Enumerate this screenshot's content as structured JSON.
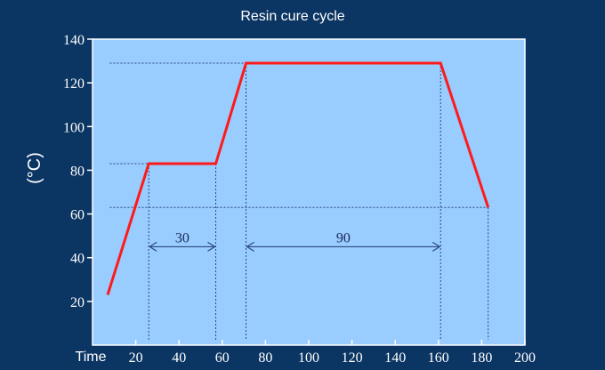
{
  "chart_data": {
    "type": "line",
    "title": "Resin cure cycle",
    "xlabel": "Time",
    "ylabel": "(°C)",
    "xlim": [
      0,
      200
    ],
    "ylim": [
      0,
      140
    ],
    "x_ticks": [
      20,
      40,
      60,
      80,
      100,
      120,
      140,
      160,
      180,
      200
    ],
    "y_ticks": [
      20,
      40,
      60,
      80,
      100,
      120,
      140
    ],
    "grid": false,
    "colors": {
      "background": "#0b3563",
      "plot_area": "#99ccff",
      "series": "#ff1a1a",
      "guide": "#2b4a7a",
      "text": "#ffffff"
    },
    "series": [
      {
        "x": [
          7,
          26,
          57,
          71,
          161,
          183
        ],
        "y": [
          23,
          83,
          83,
          129,
          129,
          63
        ]
      }
    ],
    "reference_lines": {
      "horizontal": [
        129,
        83,
        63
      ],
      "vertical": [
        26,
        57,
        71,
        161,
        183
      ]
    },
    "duration_annotations": [
      {
        "x_start": 26,
        "x_end": 57,
        "y": 45,
        "label": "30"
      },
      {
        "x_start": 71,
        "x_end": 161,
        "y": 45,
        "label": "90"
      }
    ]
  }
}
